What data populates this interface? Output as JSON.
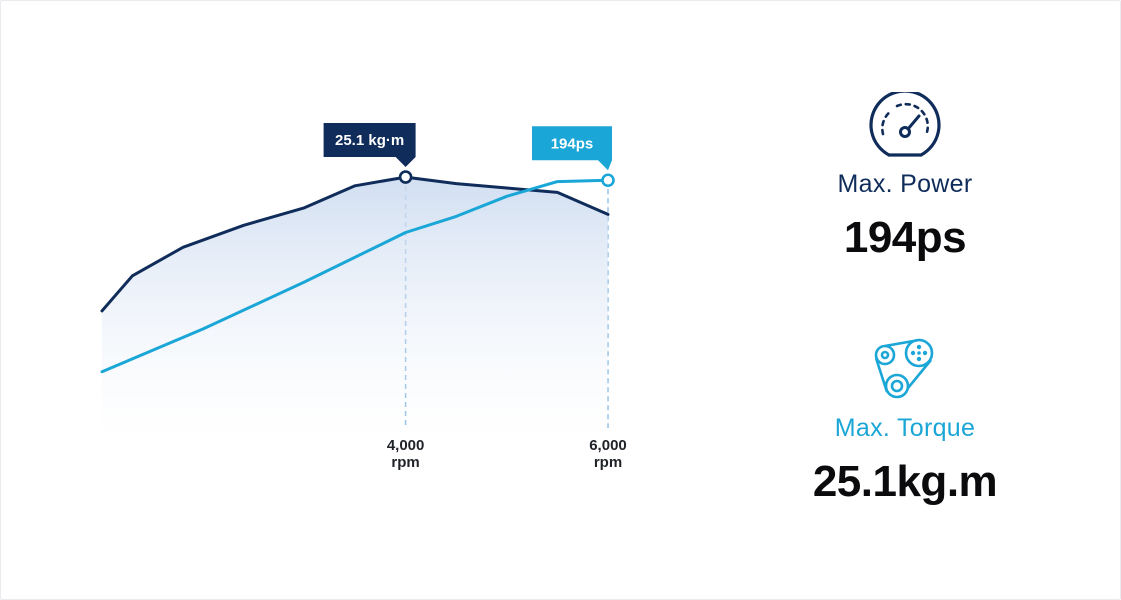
{
  "chart_data": {
    "type": "line",
    "x_ticks": [
      {
        "value": 4000,
        "label_line1": "4,000",
        "label_line2": "rpm"
      },
      {
        "value": 6000,
        "label_line1": "6,000",
        "label_line2": "rpm"
      }
    ],
    "x_range": [
      1000,
      6000
    ],
    "series": [
      {
        "key": "torque",
        "color": "#0f2c5a",
        "fill": true,
        "unit": "kg-m",
        "points": [
          [
            1000,
            19.0
          ],
          [
            1300,
            20.6
          ],
          [
            1800,
            21.9
          ],
          [
            2400,
            22.9
          ],
          [
            3000,
            23.7
          ],
          [
            3500,
            24.7
          ],
          [
            4000,
            25.1
          ],
          [
            4500,
            24.8
          ],
          [
            5000,
            24.6
          ],
          [
            5500,
            24.4
          ],
          [
            6000,
            23.4
          ]
        ],
        "peak": {
          "x": 4000,
          "y": 25.1,
          "label": "25.1 kg·m"
        }
      },
      {
        "key": "power",
        "color": "#1aa6d6",
        "fill": false,
        "unit": "ps",
        "points": [
          [
            1000,
            51
          ],
          [
            2000,
            83
          ],
          [
            3000,
            118
          ],
          [
            4000,
            155
          ],
          [
            4500,
            167
          ],
          [
            5000,
            182
          ],
          [
            5500,
            193
          ],
          [
            6000,
            194
          ]
        ],
        "peak": {
          "x": 6000,
          "y": 194,
          "label": "194ps"
        }
      }
    ]
  },
  "stats": {
    "power": {
      "label": "Max. Power",
      "value": "194ps",
      "icon": "speedometer-icon",
      "color": "#0f2c5a"
    },
    "torque": {
      "label": "Max. Torque",
      "value": "25.1kg.m",
      "icon": "belt-pulley-icon",
      "color": "#1aa6d6"
    }
  }
}
